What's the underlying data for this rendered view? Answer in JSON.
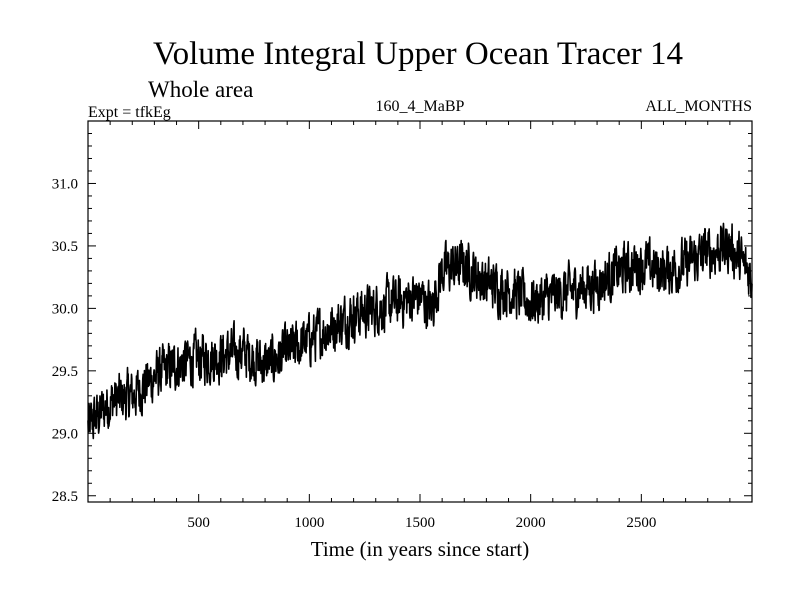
{
  "chart_data": {
    "type": "line",
    "title": "Volume Integral Upper Ocean Tracer 14",
    "subtitle": "Whole area",
    "header_left": "Expt = tfkEg",
    "header_center": "160_4_MaBP",
    "header_right": "ALL_MONTHS",
    "xlabel": "Time (in years since start)",
    "ylabel": "",
    "xlim": [
      0,
      3000
    ],
    "ylim": [
      28.45,
      31.5
    ],
    "x_ticks": [
      500,
      1000,
      1500,
      2000,
      2500
    ],
    "y_ticks": [
      28.5,
      29.0,
      29.5,
      30.0,
      30.5,
      31.0
    ],
    "x_tick_labels": [
      "500",
      "1000",
      "1500",
      "2000",
      "2500"
    ],
    "y_tick_labels": [
      "28.5",
      "29.0",
      "29.5",
      "30.0",
      "30.5",
      "31.0"
    ],
    "grid": false,
    "line_color": "#000000",
    "series": [
      {
        "x": [
          0,
          100,
          200,
          300,
          400,
          500,
          600,
          700,
          800,
          900,
          1000,
          1100,
          1200,
          1300,
          1400,
          1500,
          1550,
          1600,
          1700,
          1800,
          1900,
          2000,
          2100,
          2200,
          2300,
          2400,
          2500,
          2600,
          2700,
          2800,
          2900,
          3000
        ],
        "values": [
          29.05,
          29.25,
          29.3,
          29.45,
          29.55,
          29.6,
          29.62,
          29.65,
          29.55,
          29.65,
          29.75,
          29.85,
          29.95,
          30.0,
          30.05,
          30.1,
          30.0,
          30.3,
          30.35,
          30.2,
          30.15,
          30.05,
          30.1,
          30.15,
          30.2,
          30.3,
          30.35,
          30.3,
          30.35,
          30.45,
          30.5,
          30.25
        ],
        "noise_amplitude": 0.2
      }
    ]
  }
}
